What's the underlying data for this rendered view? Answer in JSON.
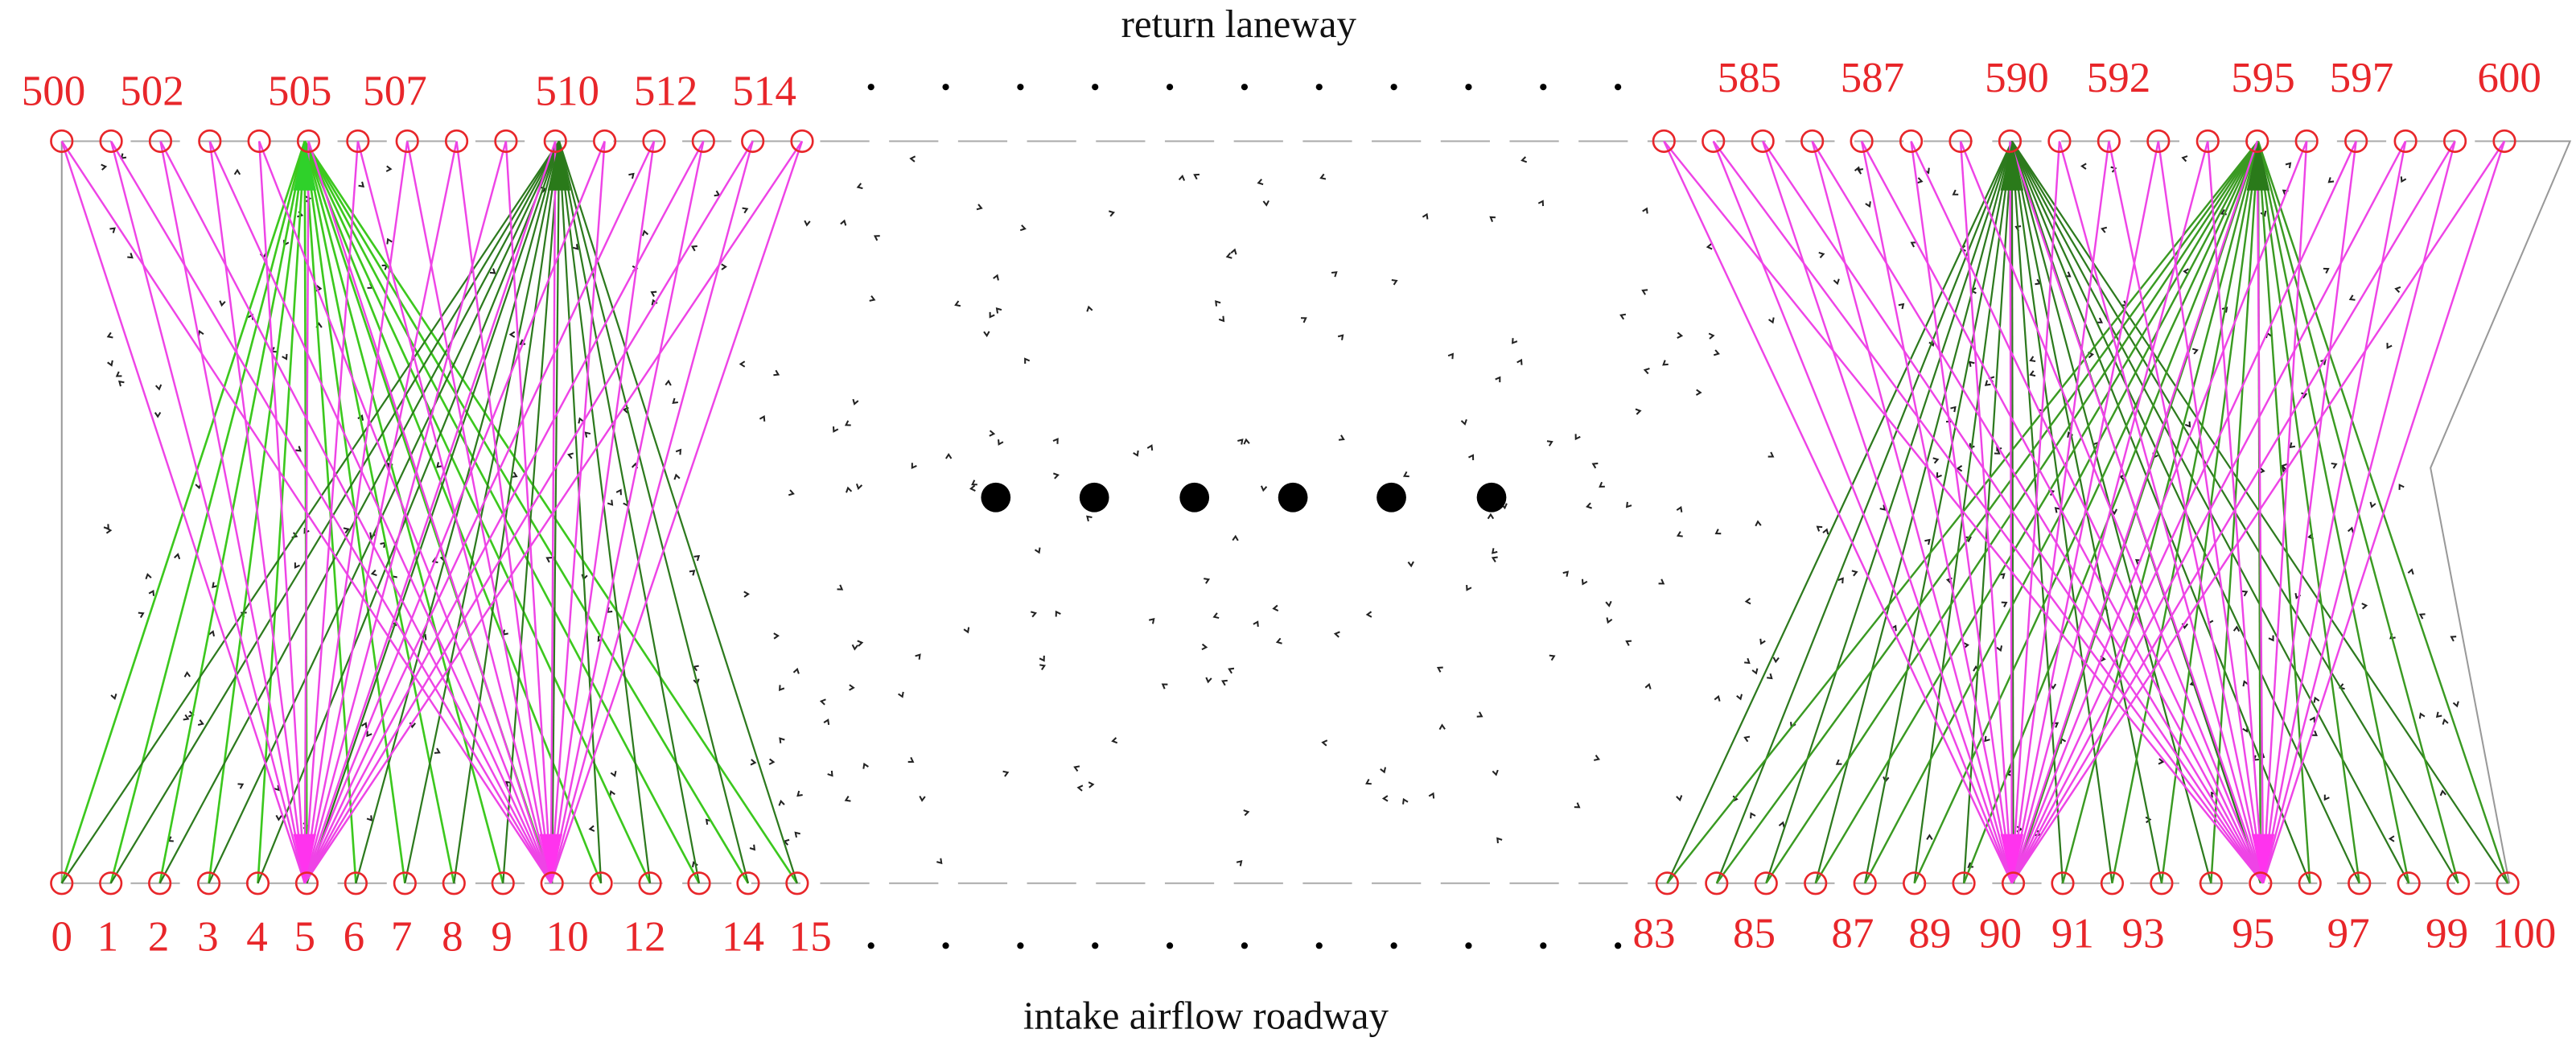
{
  "top_label": "return laneway",
  "bottom_label": "intake airflow roadway",
  "top_left_labels": [
    "500",
    "502",
    "505",
    "507",
    "510",
    "512",
    "514"
  ],
  "top_right_labels": [
    "585",
    "587",
    "590",
    "592",
    "595",
    "597",
    "600"
  ],
  "bottom_left_labels": [
    "0",
    "1",
    "2",
    "3",
    "4",
    "5",
    "6",
    "7",
    "8",
    "9",
    "10",
    "12",
    "14",
    "15"
  ],
  "bottom_right_labels": [
    "83",
    "85",
    "87",
    "89",
    "90",
    "91",
    "93",
    "95",
    "97",
    "99",
    "100"
  ]
}
